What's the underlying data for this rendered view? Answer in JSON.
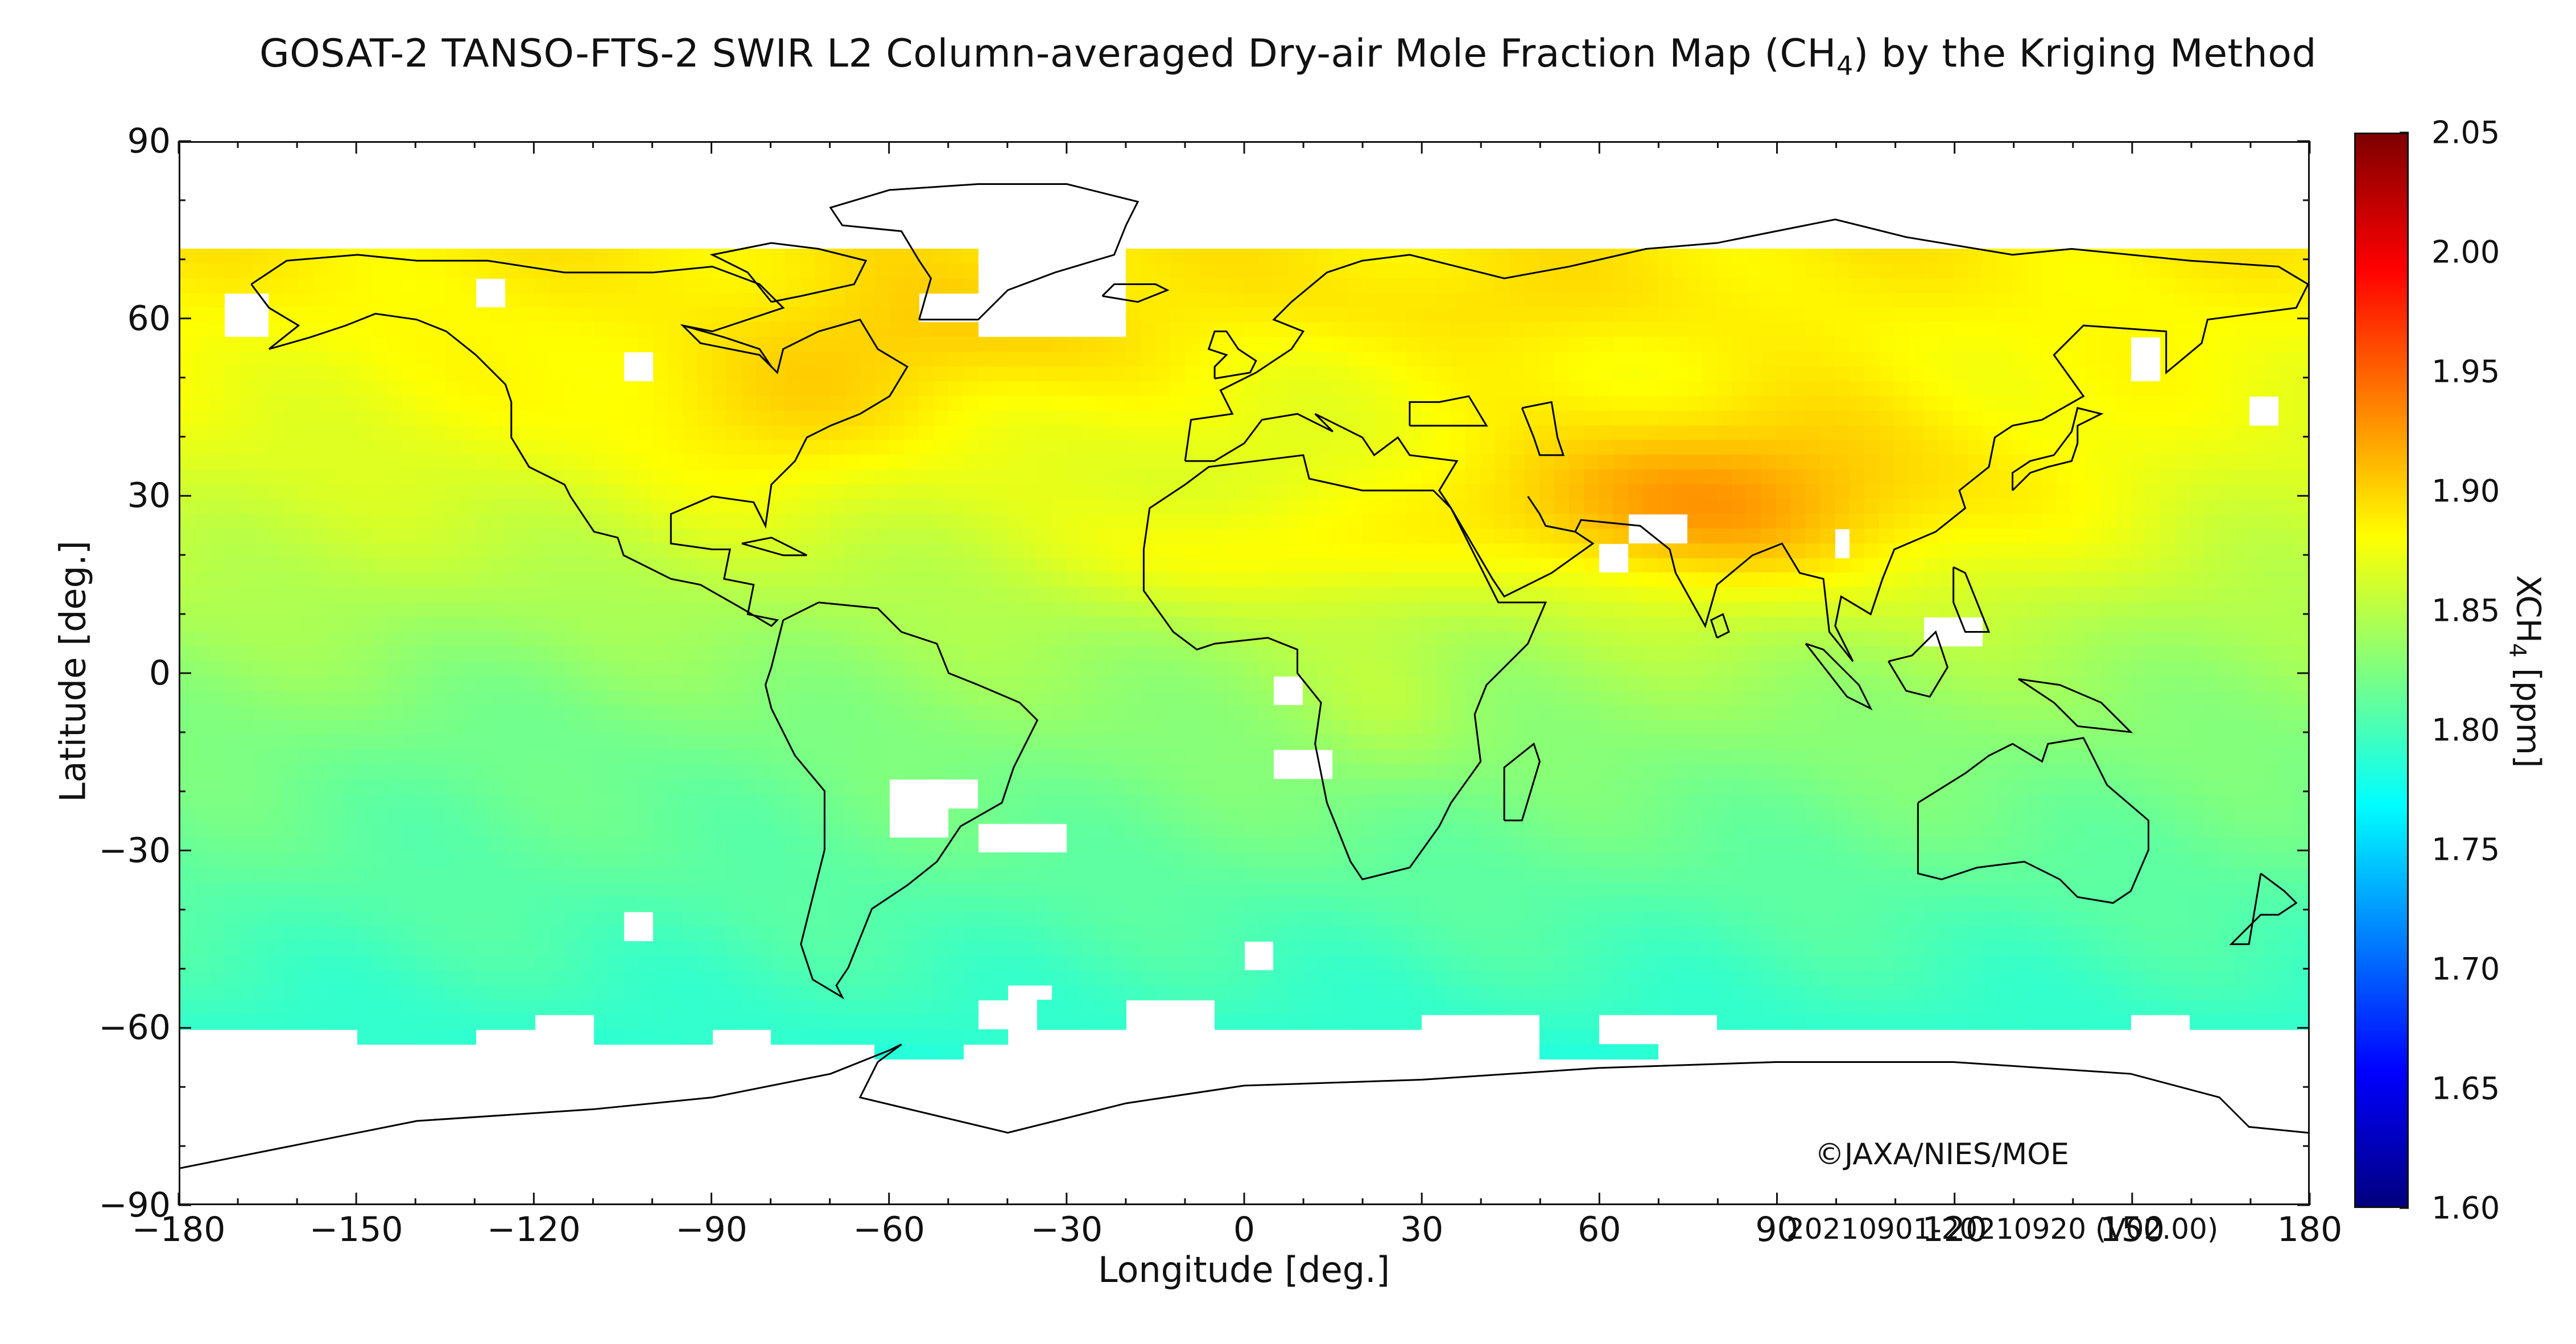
{
  "title": {
    "prefix": "GOSAT-2 TANSO-FTS-2 SWIR L2 Column-averaged Dry-air Mole Fraction Map (CH",
    "subscript": "4",
    "suffix": ") by the Kriging Method"
  },
  "map": {
    "x_axis_label": "Longitude [deg.]",
    "y_axis_label": "Latitude [deg.]",
    "lon_range": [
      -180,
      180
    ],
    "lat_range": [
      -90,
      90
    ],
    "lon_ticks": [
      -180,
      -150,
      -120,
      -90,
      -60,
      -30,
      0,
      30,
      60,
      90,
      120,
      150,
      180
    ],
    "lat_ticks": [
      90,
      60,
      30,
      0,
      -30,
      -60,
      -90
    ],
    "data_lat_extent": [
      -67,
      72
    ],
    "grid": false,
    "colormap": "jet",
    "coastlines": true
  },
  "colorbar": {
    "label_prefix": "XCH",
    "label_subscript": "4",
    "label_suffix": " [ppm]",
    "min": 1.6,
    "max": 2.05,
    "ticks": [
      "2.05",
      "2.00",
      "1.95",
      "1.90",
      "1.85",
      "1.80",
      "1.75",
      "1.70",
      "1.65",
      "1.60"
    ],
    "tick_values": [
      2.05,
      2.0,
      1.95,
      1.9,
      1.85,
      1.8,
      1.75,
      1.7,
      1.65,
      1.6
    ]
  },
  "copyright": "©JAXA/NIES/MOE",
  "period": "20210901-20210920 (V02.00)"
}
